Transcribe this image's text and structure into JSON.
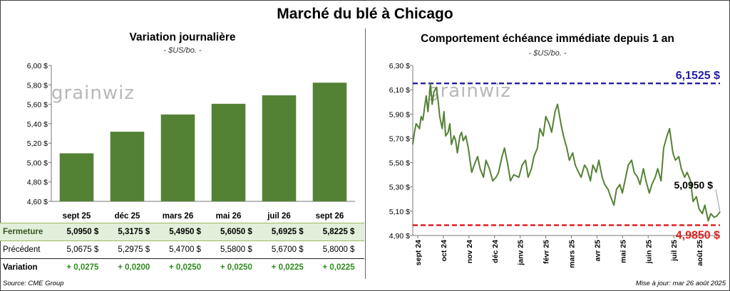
{
  "title": "Marché du blé à Chicago",
  "left": {
    "subtitle": "Variation journalière",
    "unit": "- $US/bo. -",
    "watermark": "grainwiz"
  },
  "right": {
    "subtitle": "Comportement échéance immédiate depuis 1 an",
    "unit": "- $US/bo. -",
    "watermark": "grainwiz",
    "high_label": "6,1525 $",
    "low_label": "4,9850 $",
    "last_label": "5,0950 $"
  },
  "table": {
    "rows": [
      {
        "label": "Fermeture",
        "cells": [
          "5,0950  $",
          "5,3175  $",
          "5,4950  $",
          "5,6050  $",
          "5,6925  $",
          "5,8225  $"
        ]
      },
      {
        "label": "Précédent",
        "cells": [
          "5,0675  $",
          "5,2975  $",
          "5,4700  $",
          "5,5800  $",
          "5,6700  $",
          "5,8000  $"
        ]
      },
      {
        "label": "Variation",
        "cells": [
          "+ 0,0275",
          "+ 0,0200",
          "+ 0,0250",
          "+ 0,0250",
          "+ 0,0225",
          "+ 0,0225"
        ]
      }
    ]
  },
  "footer": {
    "source": "Source: CME Group",
    "updated": "Mise à jour: mar 26 août 2025"
  },
  "colors": {
    "bar": "#548235",
    "line": "#548235",
    "high": "#1f1fa8",
    "low": "#e02020"
  },
  "chart_data": [
    {
      "type": "bar",
      "title": "Variation journalière",
      "categories": [
        "sept 25",
        "déc 25",
        "mars 26",
        "mai 26",
        "juil 26",
        "sept 26"
      ],
      "values": [
        5.095,
        5.3175,
        5.495,
        5.605,
        5.6925,
        5.8225
      ],
      "ylim": [
        4.6,
        6.0
      ],
      "yticks": [
        4.6,
        4.8,
        5.0,
        5.2,
        5.4,
        5.6,
        5.8,
        6.0
      ],
      "ytick_labels": [
        "4,60 $",
        "4,80 $",
        "5,00 $",
        "5,20 $",
        "5,40 $",
        "5,60 $",
        "5,80 $",
        "6,00 $"
      ],
      "grid": false
    },
    {
      "type": "line",
      "title": "Comportement échéance immédiate depuis 1 an",
      "ylim": [
        4.9,
        6.3
      ],
      "yticks": [
        4.9,
        5.1,
        5.3,
        5.5,
        5.7,
        5.9,
        6.1,
        6.3
      ],
      "ytick_labels": [
        "4,90 $",
        "5,10 $",
        "5,30 $",
        "5,50 $",
        "5,70 $",
        "5,90 $",
        "6,10 $",
        "6,30 $"
      ],
      "xlabels": [
        "sept 24",
        "oct 24",
        "nov 24",
        "déc 24",
        "janv 25",
        "févr 25",
        "mars 25",
        "avr 25",
        "mai 25",
        "juin 25",
        "juil 25",
        "août 25"
      ],
      "x_start": "2024-08-26",
      "x_end": "2025-08-26",
      "reference_lines": [
        {
          "name": "high",
          "value": 6.1525,
          "style": "dashed"
        },
        {
          "name": "low",
          "value": 4.985,
          "style": "dashed"
        }
      ],
      "last_value": 5.095,
      "series": [
        {
          "x": [
            "2024-08-26",
            "2024-08-28",
            "2024-08-30",
            "2024-09-03",
            "2024-09-05",
            "2024-09-07",
            "2024-09-09",
            "2024-09-11",
            "2024-09-13",
            "2024-09-16",
            "2024-09-18",
            "2024-09-20",
            "2024-09-23",
            "2024-09-25",
            "2024-09-27",
            "2024-09-30",
            "2024-10-02",
            "2024-10-04",
            "2024-10-07",
            "2024-10-09",
            "2024-10-11",
            "2024-10-14",
            "2024-10-16",
            "2024-10-18",
            "2024-10-21",
            "2024-10-23",
            "2024-10-25",
            "2024-10-28",
            "2024-10-31",
            "2024-11-04",
            "2024-11-07",
            "2024-11-11",
            "2024-11-14",
            "2024-11-18",
            "2024-11-21",
            "2024-11-25",
            "2024-11-29",
            "2024-12-03",
            "2024-12-06",
            "2024-12-10",
            "2024-12-13",
            "2024-12-17",
            "2024-12-20",
            "2024-12-24",
            "2024-12-30",
            "2025-01-03",
            "2025-01-07",
            "2025-01-10",
            "2025-01-14",
            "2025-01-17",
            "2025-01-21",
            "2025-01-24",
            "2025-01-28",
            "2025-01-31",
            "2025-02-04",
            "2025-02-07",
            "2025-02-11",
            "2025-02-14",
            "2025-02-18",
            "2025-02-21",
            "2025-02-25",
            "2025-02-28",
            "2025-03-04",
            "2025-03-07",
            "2025-03-11",
            "2025-03-14",
            "2025-03-18",
            "2025-03-21",
            "2025-03-25",
            "2025-03-28",
            "2025-04-01",
            "2025-04-04",
            "2025-04-08",
            "2025-04-11",
            "2025-04-15",
            "2025-04-18",
            "2025-04-22",
            "2025-04-25",
            "2025-04-29",
            "2025-05-02",
            "2025-05-06",
            "2025-05-09",
            "2025-05-13",
            "2025-05-16",
            "2025-05-20",
            "2025-05-23",
            "2025-05-27",
            "2025-05-30",
            "2025-06-03",
            "2025-06-06",
            "2025-06-10",
            "2025-06-13",
            "2025-06-17",
            "2025-06-20",
            "2025-06-24",
            "2025-06-27",
            "2025-07-01",
            "2025-07-04",
            "2025-07-08",
            "2025-07-11",
            "2025-07-15",
            "2025-07-18",
            "2025-07-22",
            "2025-07-25",
            "2025-07-29",
            "2025-08-01",
            "2025-08-05",
            "2025-08-08",
            "2025-08-12",
            "2025-08-15",
            "2025-08-19",
            "2025-08-22",
            "2025-08-26"
          ],
          "y": [
            5.65,
            5.75,
            5.82,
            5.78,
            5.88,
            5.85,
            5.95,
            6.05,
            5.92,
            6.15,
            5.98,
            6.08,
            6.12,
            6.02,
            5.88,
            5.78,
            5.92,
            5.72,
            5.75,
            5.82,
            5.65,
            5.72,
            5.68,
            5.58,
            5.72,
            5.75,
            5.68,
            5.72,
            5.62,
            5.42,
            5.48,
            5.55,
            5.45,
            5.38,
            5.52,
            5.45,
            5.35,
            5.38,
            5.42,
            5.55,
            5.62,
            5.48,
            5.35,
            5.4,
            5.38,
            5.48,
            5.52,
            5.38,
            5.45,
            5.55,
            5.62,
            5.78,
            5.72,
            5.88,
            5.82,
            5.75,
            5.92,
            5.98,
            5.82,
            5.72,
            5.62,
            5.52,
            5.58,
            5.48,
            5.42,
            5.38,
            5.48,
            5.45,
            5.35,
            5.48,
            5.42,
            5.52,
            5.38,
            5.32,
            5.28,
            5.22,
            5.15,
            5.28,
            5.32,
            5.25,
            5.38,
            5.48,
            5.52,
            5.42,
            5.38,
            5.32,
            5.45,
            5.35,
            5.25,
            5.32,
            5.38,
            5.45,
            5.35,
            5.62,
            5.72,
            5.78,
            5.58,
            5.52,
            5.55,
            5.45,
            5.38,
            5.42,
            5.35,
            5.18,
            5.22,
            5.12,
            5.08,
            5.15,
            5.02,
            5.08,
            5.05,
            5.06,
            5.095
          ]
        }
      ]
    }
  ]
}
